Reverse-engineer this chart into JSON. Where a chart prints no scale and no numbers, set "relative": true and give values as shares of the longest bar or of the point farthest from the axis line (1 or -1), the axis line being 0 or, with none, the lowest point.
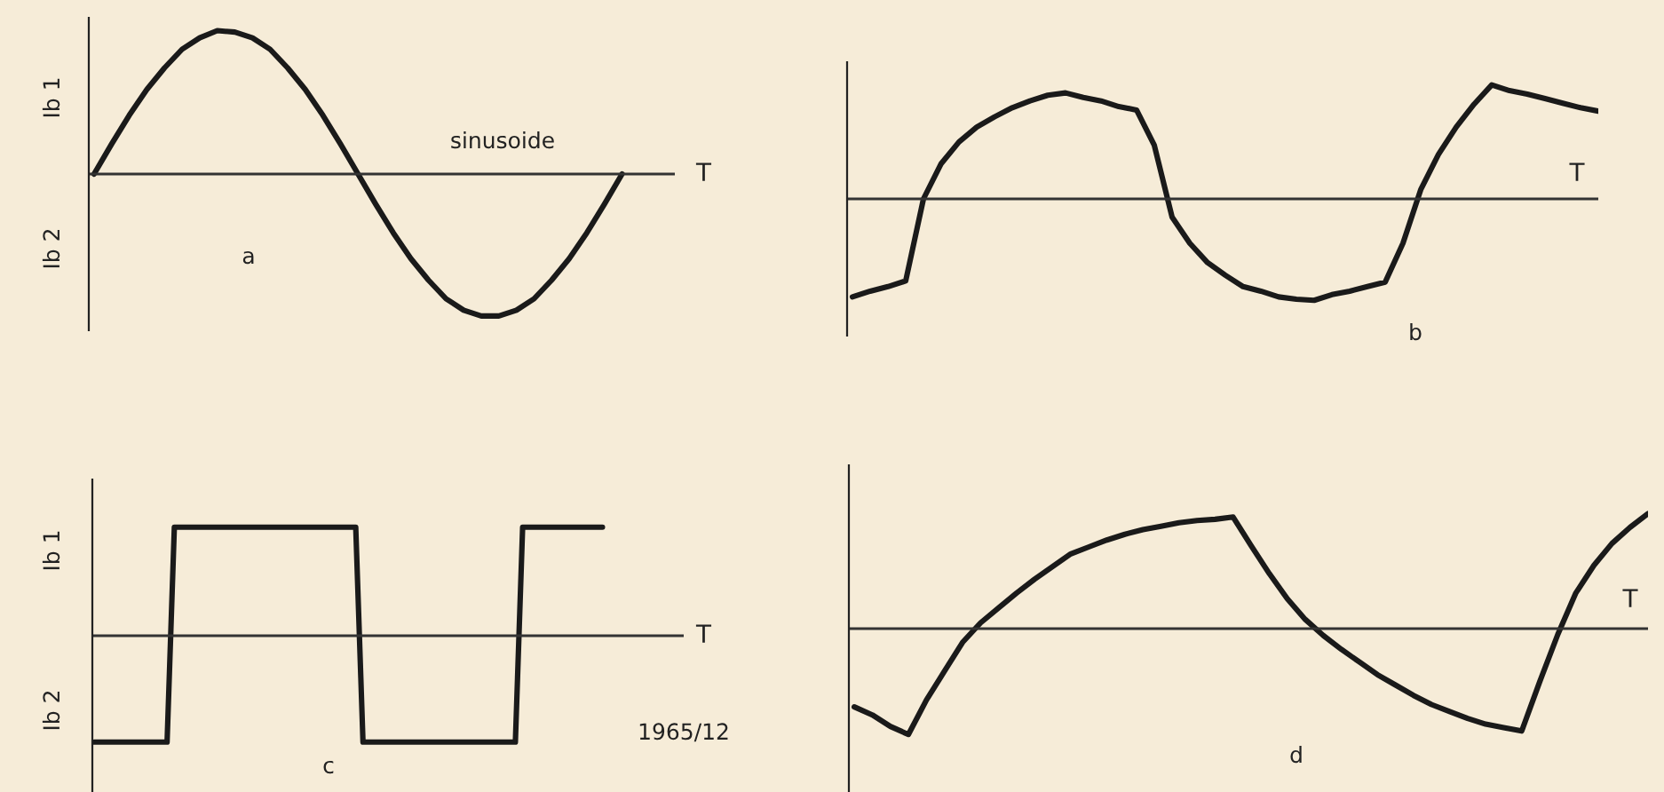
{
  "chart_data": [
    {
      "type": "line",
      "relative": true,
      "xlabel": "T",
      "annotations": [
        "Ib 1",
        "Ib 2",
        "sinusoide",
        "a"
      ],
      "categories": [
        null,
        null,
        null,
        null,
        null,
        null,
        null,
        null,
        null,
        null,
        null,
        null,
        null,
        null,
        null,
        null,
        null,
        null,
        null,
        null,
        null,
        null,
        null,
        null,
        null,
        null,
        null,
        null,
        null,
        null,
        null,
        null,
        null,
        null
      ],
      "series": [
        {
          "color": "#1a1a1a",
          "values": [
            0,
            0.21,
            0.41,
            0.59,
            0.74,
            0.87,
            0.95,
            1.0,
            0.99,
            0.95,
            0.87,
            0.74,
            0.59,
            0.41,
            0.21,
            0,
            -0.21,
            -0.41,
            -0.59,
            -0.74,
            -0.87,
            -0.95,
            -0.99,
            -0.99,
            -0.95,
            -0.87,
            -0.74,
            -0.59,
            -0.41,
            -0.21,
            0,
            null,
            null,
            null
          ]
        }
      ]
    },
    {
      "type": "line",
      "relative": true,
      "xlabel": "T",
      "annotations": [
        "b"
      ],
      "categories": [
        null,
        null,
        null,
        null,
        null,
        null,
        null,
        null,
        null,
        null,
        null,
        null,
        null,
        null,
        null,
        null,
        null,
        null,
        null,
        null,
        null,
        null,
        null,
        null,
        null,
        null,
        null,
        null,
        null,
        null,
        null,
        null,
        null,
        null,
        null,
        null,
        null,
        null,
        null,
        null,
        null,
        null,
        null
      ],
      "series": [
        {
          "color": "#1a1a1a",
          "values": [
            -0.86,
            -0.81,
            -0.77,
            -0.72,
            0,
            0.31,
            0.5,
            0.63,
            0.72,
            0.8,
            0.86,
            0.91,
            0.93,
            0.89,
            0.86,
            0.81,
            0.78,
            0.47,
            -0.16,
            -0.39,
            -0.56,
            -0.67,
            -0.77,
            -0.81,
            -0.86,
            -0.88,
            -0.89,
            -0.84,
            -0.81,
            -0.77,
            -0.73,
            -0.39,
            0.08,
            0.39,
            0.63,
            0.83,
            1.0,
            0.95,
            0.92,
            0.88,
            0.84,
            0.8,
            0.77
          ]
        }
      ]
    },
    {
      "type": "line",
      "relative": true,
      "xlabel": "T",
      "annotations": [
        "Ib 1",
        "Ib 2",
        "c",
        "1965/12"
      ],
      "categories": [
        null,
        null,
        null,
        null,
        null,
        null,
        null,
        null,
        null,
        null,
        null,
        null,
        null,
        null,
        null,
        null,
        null,
        null,
        null,
        null,
        null,
        null,
        null,
        null,
        null,
        null,
        null,
        null,
        null,
        null,
        null,
        null,
        null,
        null,
        null,
        null,
        null,
        null,
        null,
        null,
        null,
        null,
        null,
        null,
        null,
        null,
        null,
        null,
        null,
        null,
        null,
        null,
        null,
        null,
        null,
        null,
        null,
        null,
        null,
        null,
        null,
        null,
        null,
        null,
        null,
        null,
        null,
        null,
        null,
        null,
        null
      ],
      "series": [
        {
          "color": "#1a1a1a",
          "values": [
            -0.98,
            -0.98,
            -0.98,
            -0.98,
            -0.98,
            -0.98,
            -0.98,
            -0.98,
            -0.98,
            -0.98,
            -0.98,
            1,
            1,
            1,
            1,
            1,
            1,
            1,
            1,
            1,
            1,
            1,
            1,
            1,
            1,
            1,
            1,
            1,
            1,
            1,
            1,
            1,
            1,
            1,
            1,
            1,
            1,
            -0.98,
            -0.98,
            -0.98,
            -0.98,
            -0.98,
            -0.98,
            -0.98,
            -0.98,
            -0.98,
            -0.98,
            -0.98,
            -0.98,
            -0.98,
            -0.98,
            -0.98,
            -0.98,
            -0.98,
            -0.98,
            -0.98,
            -0.98,
            -0.98,
            -0.98,
            1,
            1,
            1,
            1,
            1,
            1,
            1,
            1,
            1,
            1,
            1,
            1
          ]
        }
      ]
    },
    {
      "type": "line",
      "relative": true,
      "xlabel": "T",
      "annotations": [
        "d"
      ],
      "categories": [
        null,
        null,
        null,
        null,
        null,
        null,
        null,
        null,
        null,
        null,
        null,
        null,
        null,
        null,
        null,
        null,
        null,
        null,
        null,
        null,
        null,
        null,
        null,
        null,
        null,
        null,
        null,
        null,
        null,
        null,
        null,
        null,
        null,
        null,
        null,
        null,
        null,
        null,
        null,
        null,
        null,
        null,
        null,
        null,
        null
      ],
      "series": [
        {
          "color": "#1a1a1a",
          "values": [
            -0.68,
            -0.75,
            -0.85,
            -0.92,
            -0.62,
            -0.37,
            -0.12,
            0.05,
            0.18,
            0.31,
            0.43,
            0.54,
            0.65,
            0.71,
            0.77,
            0.82,
            0.86,
            0.89,
            0.92,
            0.94,
            0.95,
            0.97,
            0.72,
            0.48,
            0.26,
            0.08,
            -0.06,
            -0.18,
            -0.29,
            -0.4,
            -0.49,
            -0.58,
            -0.66,
            -0.72,
            -0.78,
            -0.83,
            -0.86,
            -0.89,
            -0.46,
            -0.05,
            0.31,
            0.55,
            0.74,
            0.88,
            1.0
          ]
        }
      ]
    }
  ]
}
